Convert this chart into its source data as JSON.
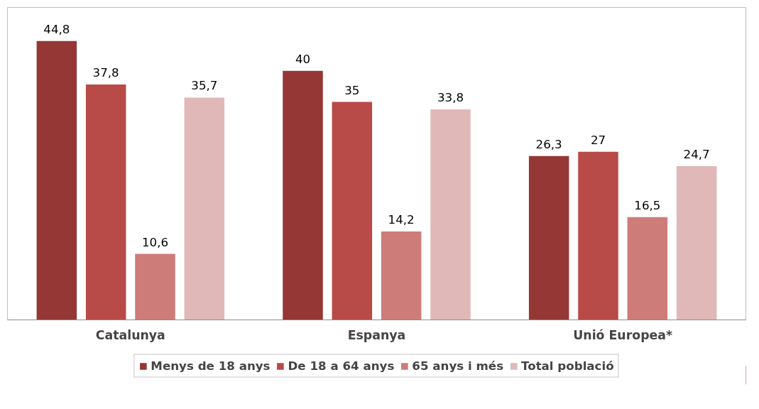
{
  "chart_data": {
    "type": "bar",
    "categories": [
      "Catalunya",
      "Espanya",
      "Unió Europea*"
    ],
    "series": [
      {
        "name": "Menys de 18 anys",
        "color": "#953735",
        "values": [
          44.8,
          40,
          26.3
        ],
        "value_labels": [
          "44,8",
          "40",
          "26,3"
        ]
      },
      {
        "name": "De 18 a 64 anys",
        "color": "#b84a48",
        "values": [
          37.8,
          35,
          27
        ],
        "value_labels": [
          "37,8",
          "35",
          "27"
        ]
      },
      {
        "name": "65 anys i més",
        "color": "#cd7c7a",
        "values": [
          10.6,
          14.2,
          16.5
        ],
        "value_labels": [
          "10,6",
          "14,2",
          "16,5"
        ]
      },
      {
        "name": "Total població",
        "color": "#e0b8b8",
        "values": [
          35.7,
          33.8,
          24.7
        ],
        "value_labels": [
          "35,7",
          "33,8",
          "24,7"
        ]
      }
    ],
    "legend": "bottom"
  }
}
